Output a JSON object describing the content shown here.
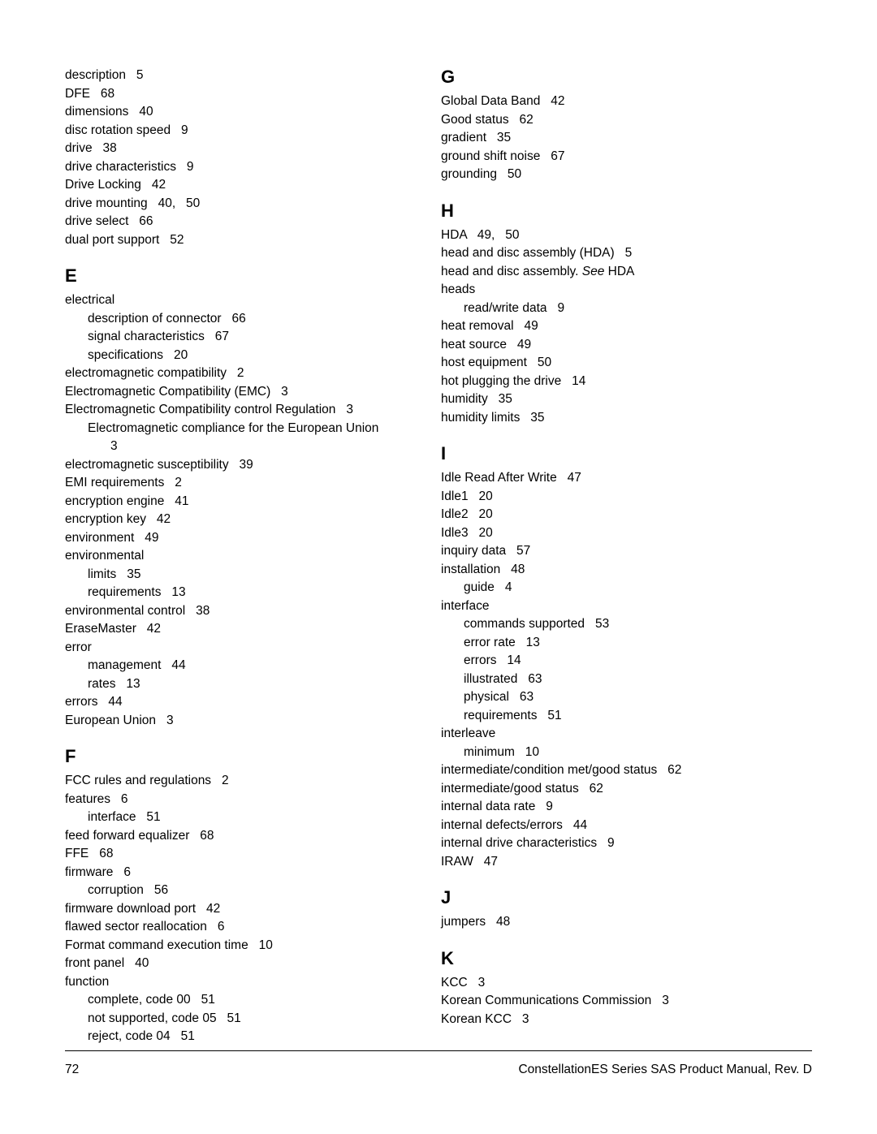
{
  "footer": {
    "pageNum": "72",
    "title": "ConstellationES Series SAS Product Manual, Rev. D"
  },
  "left": {
    "pre": [
      {
        "t": "description",
        "p": "5"
      },
      {
        "t": "DFE",
        "p": "68"
      },
      {
        "t": "dimensions",
        "p": "40"
      },
      {
        "t": "disc rotation speed",
        "p": "9"
      },
      {
        "t": "drive",
        "p": "38"
      },
      {
        "t": "drive characteristics",
        "p": "9"
      },
      {
        "t": "Drive Locking",
        "p": "42"
      },
      {
        "t": "drive mounting",
        "p": "40,   50"
      },
      {
        "t": "drive select",
        "p": "66"
      },
      {
        "t": "dual port support",
        "p": "52"
      }
    ],
    "E": {
      "heading": "E",
      "items": [
        {
          "t": "electrical"
        },
        {
          "t": "description of connector",
          "p": "66",
          "sub": true
        },
        {
          "t": "signal characteristics",
          "p": "67",
          "sub": true
        },
        {
          "t": "specifications",
          "p": "20",
          "sub": true
        },
        {
          "t": "electromagnetic compatibility",
          "p": "2"
        },
        {
          "t": "Electromagnetic Compatibility (EMC)",
          "p": "3"
        },
        {
          "t": "Electromagnetic Compatibility control Regulation",
          "p": "3"
        },
        {
          "t": "Electromagnetic compliance for the European Union",
          "p": "3",
          "wrap": true
        },
        {
          "t": "electromagnetic susceptibility",
          "p": "39"
        },
        {
          "t": "EMI requirements",
          "p": "2"
        },
        {
          "t": "encryption engine",
          "p": "41"
        },
        {
          "t": "encryption key",
          "p": "42"
        },
        {
          "t": "environment",
          "p": "49"
        },
        {
          "t": "environmental"
        },
        {
          "t": "limits",
          "p": "35",
          "sub": true
        },
        {
          "t": "requirements",
          "p": "13",
          "sub": true
        },
        {
          "t": "environmental control",
          "p": "38"
        },
        {
          "t": "EraseMaster",
          "p": "42"
        },
        {
          "t": "error"
        },
        {
          "t": "management",
          "p": "44",
          "sub": true
        },
        {
          "t": "rates",
          "p": "13",
          "sub": true
        },
        {
          "t": "errors",
          "p": "44"
        },
        {
          "t": "European Union",
          "p": "3"
        }
      ]
    },
    "F": {
      "heading": "F",
      "items": [
        {
          "t": "FCC rules and regulations",
          "p": "2"
        },
        {
          "t": "features",
          "p": "6"
        },
        {
          "t": "interface",
          "p": "51",
          "sub": true
        },
        {
          "t": "feed forward equalizer",
          "p": "68"
        },
        {
          "t": "FFE",
          "p": "68"
        },
        {
          "t": "firmware",
          "p": "6"
        },
        {
          "t": "corruption",
          "p": "56",
          "sub": true
        },
        {
          "t": "firmware download port",
          "p": "42"
        },
        {
          "t": "flawed sector reallocation",
          "p": "6"
        },
        {
          "t": "Format command execution time",
          "p": "10"
        },
        {
          "t": "front panel",
          "p": "40"
        },
        {
          "t": "function"
        },
        {
          "t": "complete, code 00",
          "p": "51",
          "sub": true
        },
        {
          "t": "not supported, code 05",
          "p": "51",
          "sub": true
        },
        {
          "t": "reject, code 04",
          "p": "51",
          "sub": true
        }
      ]
    }
  },
  "right": {
    "G": {
      "heading": "G",
      "items": [
        {
          "t": "Global Data Band",
          "p": "42"
        },
        {
          "t": "Good status",
          "p": "62"
        },
        {
          "t": "gradient",
          "p": "35"
        },
        {
          "t": "ground shift noise",
          "p": "67"
        },
        {
          "t": "grounding",
          "p": "50"
        }
      ]
    },
    "H": {
      "heading": "H",
      "items": [
        {
          "t": "HDA",
          "p": "49,   50"
        },
        {
          "t": "head and disc assembly (HDA)",
          "p": "5"
        },
        {
          "html": "head and disc assembly. <span class=\"italic\">See</span> HDA"
        },
        {
          "t": "heads"
        },
        {
          "t": "read/write data",
          "p": "9",
          "sub": true
        },
        {
          "t": "heat removal",
          "p": "49"
        },
        {
          "t": "heat source",
          "p": "49"
        },
        {
          "t": "host equipment",
          "p": "50"
        },
        {
          "t": "hot plugging the drive",
          "p": "14"
        },
        {
          "t": "humidity",
          "p": "35"
        },
        {
          "t": "humidity limits",
          "p": "35"
        }
      ]
    },
    "I": {
      "heading": "I",
      "items": [
        {
          "t": "Idle Read After Write",
          "p": "47"
        },
        {
          "t": "Idle1",
          "p": "20"
        },
        {
          "t": "Idle2",
          "p": "20"
        },
        {
          "t": "Idle3",
          "p": "20"
        },
        {
          "t": "inquiry data",
          "p": "57"
        },
        {
          "t": "installation",
          "p": "48"
        },
        {
          "t": "guide",
          "p": "4",
          "sub": true
        },
        {
          "t": "interface"
        },
        {
          "t": "commands supported",
          "p": "53",
          "sub": true
        },
        {
          "t": "error rate",
          "p": "13",
          "sub": true
        },
        {
          "t": "errors",
          "p": "14",
          "sub": true
        },
        {
          "t": "illustrated",
          "p": "63",
          "sub": true
        },
        {
          "t": "physical",
          "p": "63",
          "sub": true
        },
        {
          "t": "requirements",
          "p": "51",
          "sub": true
        },
        {
          "t": "interleave"
        },
        {
          "t": "minimum",
          "p": "10",
          "sub": true
        },
        {
          "t": "intermediate/condition met/good status",
          "p": "62"
        },
        {
          "t": "intermediate/good status",
          "p": "62"
        },
        {
          "t": "internal data rate",
          "p": "9"
        },
        {
          "t": "internal defects/errors",
          "p": "44"
        },
        {
          "t": "internal drive characteristics",
          "p": "9"
        },
        {
          "t": "IRAW",
          "p": "47"
        }
      ]
    },
    "J": {
      "heading": "J",
      "items": [
        {
          "t": "jumpers",
          "p": "48"
        }
      ]
    },
    "K": {
      "heading": "K",
      "items": [
        {
          "t": "KCC",
          "p": "3"
        },
        {
          "t": "Korean Communications Commission",
          "p": "3"
        },
        {
          "t": "Korean KCC",
          "p": "3"
        }
      ]
    }
  }
}
